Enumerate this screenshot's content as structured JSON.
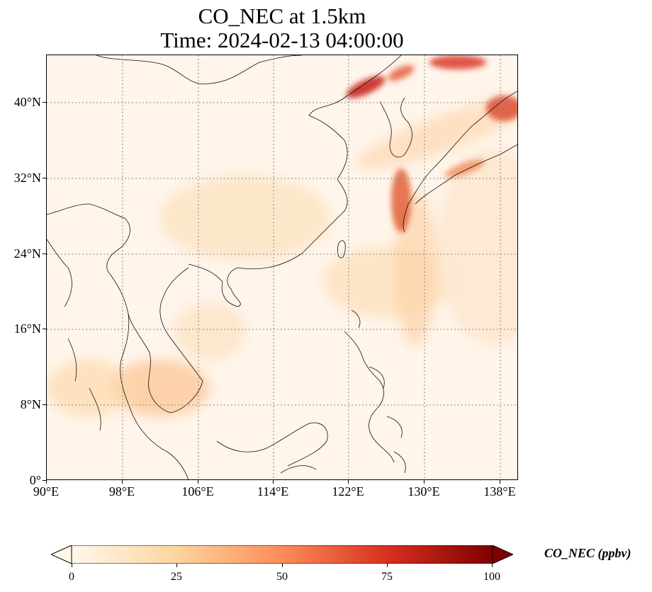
{
  "title": {
    "line1": "CO_NEC at 1.5km",
    "line2": "Time: 2024-02-13 04:00:00"
  },
  "map": {
    "lon_range": [
      90,
      139
    ],
    "lat_range": [
      0,
      45
    ],
    "lat_ticks": [
      "0°",
      "8°N",
      "16°N",
      "24°N",
      "32°N",
      "40°N"
    ],
    "lon_ticks": [
      "90°E",
      "98°E",
      "106°E",
      "114°E",
      "122°E",
      "130°E",
      "138°E"
    ],
    "gridlines": "dotted",
    "colormap": "OrRd",
    "background_color": "#fff5ea"
  },
  "colorbar": {
    "label": "CO_NEC (ppbv)",
    "ticks": [
      "0",
      "25",
      "50",
      "75",
      "100"
    ],
    "min": 0,
    "max": 100,
    "extend": "both",
    "colors": [
      "#fff7ec",
      "#fdd49e",
      "#fc8d59",
      "#d7301f",
      "#7f0000"
    ]
  }
}
